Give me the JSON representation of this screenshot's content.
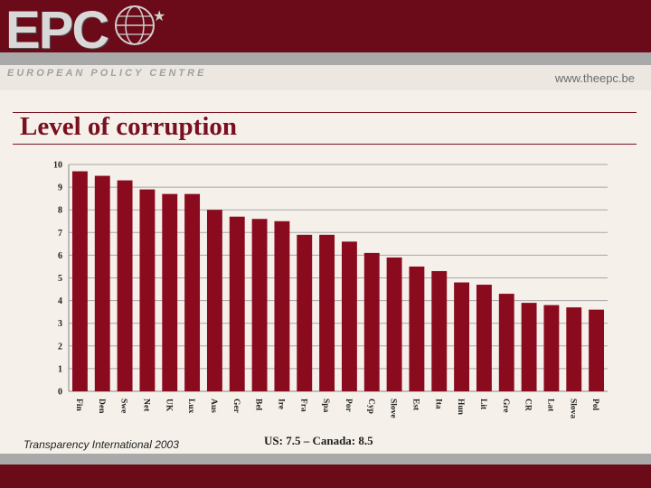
{
  "header": {
    "logo_text": "EPC",
    "logo_tagline": "EUROPEAN POLICY CENTRE",
    "website": "www.theepc.be"
  },
  "page_title": "Level of corruption",
  "footer": {
    "source": "Transparency International 2003",
    "note": "US: 7.5 – Canada: 8.5"
  },
  "colors": {
    "brand": "#6b0a18",
    "bar": "#8a0b1e",
    "title": "#7a0f1f"
  },
  "chart_data": {
    "type": "bar",
    "categories": [
      "Fin",
      "Den",
      "Swe",
      "Net",
      "UK",
      "Lux",
      "Aus",
      "Ger",
      "Bel",
      "Ire",
      "Fra",
      "Spa",
      "Por",
      "Cyp",
      "Slove",
      "Est",
      "Ita",
      "Hun",
      "Lit",
      "Gre",
      "CR",
      "Lat",
      "Slova",
      "Pol"
    ],
    "values": [
      9.7,
      9.5,
      9.3,
      8.9,
      8.7,
      8.7,
      8.0,
      7.7,
      7.6,
      7.5,
      6.9,
      6.9,
      6.6,
      6.1,
      5.9,
      5.5,
      5.3,
      4.8,
      4.7,
      4.3,
      3.9,
      3.8,
      3.7,
      3.6
    ],
    "ylim": [
      0,
      10
    ],
    "yticks": [
      0,
      1,
      2,
      3,
      4,
      5,
      6,
      7,
      8,
      9,
      10
    ],
    "grid": true,
    "title": "",
    "xlabel": "",
    "ylabel": ""
  }
}
